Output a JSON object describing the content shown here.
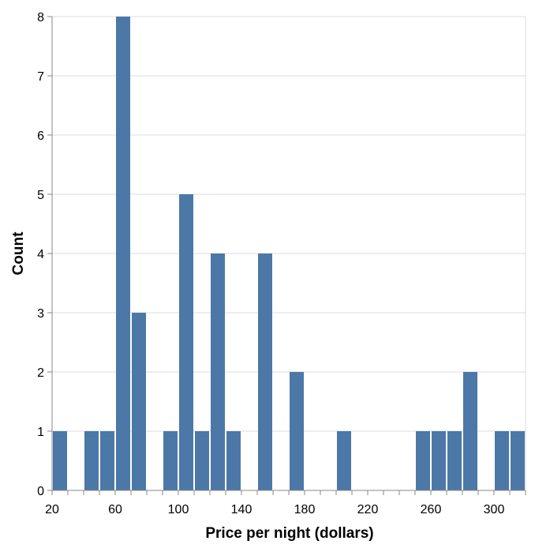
{
  "chart_data": {
    "type": "bar",
    "title": "",
    "xlabel": "Price per night (dollars)",
    "ylabel": "Count",
    "bin_width": 10,
    "x": [
      20,
      40,
      50,
      60,
      70,
      90,
      100,
      110,
      120,
      130,
      150,
      170,
      200,
      250,
      260,
      270,
      280,
      300,
      310
    ],
    "values": [
      1,
      1,
      1,
      8,
      3,
      1,
      5,
      1,
      4,
      1,
      4,
      2,
      1,
      1,
      1,
      1,
      2,
      1,
      1
    ],
    "xlim": [
      20,
      320
    ],
    "ylim": [
      0,
      8
    ],
    "x_ticks": [
      20,
      60,
      100,
      140,
      180,
      220,
      260,
      300
    ],
    "y_ticks": [
      0,
      1,
      2,
      3,
      4,
      5,
      6,
      7,
      8
    ],
    "grid": true,
    "bar_color": "#4c78a8",
    "grid_color": "#dddddd",
    "axis_color": "#888888"
  }
}
